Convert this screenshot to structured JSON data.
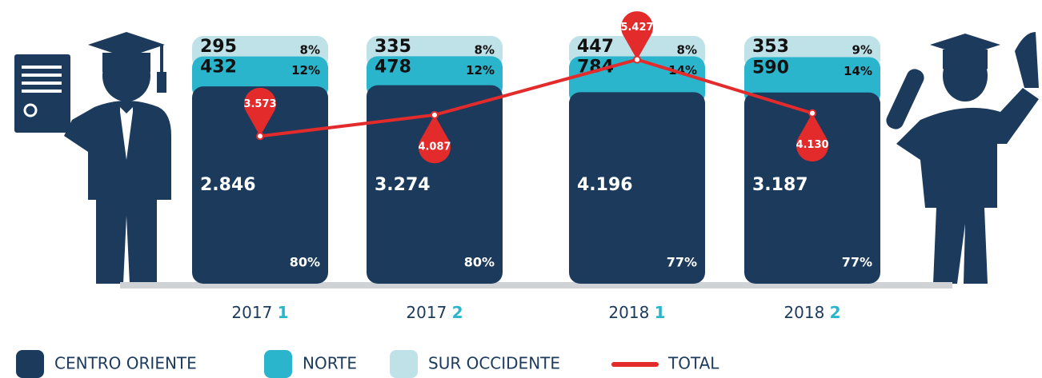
{
  "chart_data": {
    "type": "stacked_bar",
    "categories": [
      "2017 1",
      "2017 2",
      "2018 1",
      "2018 2"
    ],
    "series": [
      {
        "name": "CENTRO ORIENTE",
        "color": "#1b3a5c",
        "values": [
          2846,
          3274,
          4196,
          3187
        ],
        "value_labels": [
          "2.846",
          "3.274",
          "4.196",
          "3.187"
        ],
        "share_labels": [
          "80%",
          "80%",
          "77%",
          "77%"
        ]
      },
      {
        "name": "NORTE",
        "color": "#2bb5cc",
        "values": [
          432,
          478,
          784,
          590
        ],
        "share_labels": [
          "12%",
          "12%",
          "14%",
          "14%"
        ]
      },
      {
        "name": "SUR OCCIDENTE",
        "color": "#bfe1e8",
        "values": [
          295,
          335,
          447,
          353
        ],
        "share_labels": [
          "8%",
          "8%",
          "8%",
          "9%"
        ]
      }
    ],
    "total": {
      "name": "TOTAL",
      "color": "#e32b2b",
      "values": [
        3573,
        4087,
        5427,
        4130
      ],
      "value_labels": [
        "3.573",
        "4.087",
        "5.427",
        "4.130"
      ],
      "ylim": [
        0,
        6000
      ],
      "pin_positions": [
        "above",
        "below",
        "above",
        "below"
      ]
    },
    "term_color": "#2bb5cc"
  }
}
